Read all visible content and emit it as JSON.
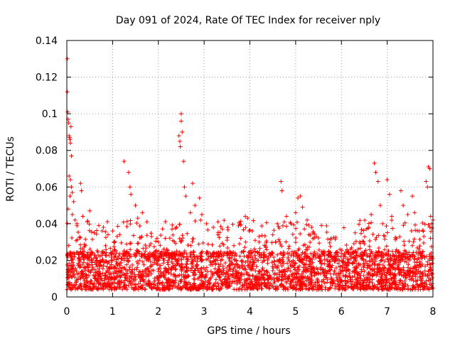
{
  "chart_data": {
    "type": "scatter",
    "title": "Day 091 of 2024, Rate Of TEC Index for receiver nply",
    "xlabel": "GPS time / hours",
    "ylabel": "ROTI / TECUs",
    "xlim": [
      0,
      8
    ],
    "ylim": [
      0,
      0.14
    ],
    "x_ticks": [
      0,
      1,
      2,
      3,
      4,
      5,
      6,
      7,
      8
    ],
    "x_tick_labels": [
      "0",
      "1",
      "2",
      "3",
      "4",
      "5",
      "6",
      "7",
      "8"
    ],
    "y_ticks": [
      0,
      0.02,
      0.04,
      0.06,
      0.08,
      0.1,
      0.12,
      0.14
    ],
    "y_tick_labels": [
      "0",
      "0.02",
      "0.04",
      "0.06",
      "0.08",
      "0.1",
      "0.12",
      "0.14"
    ],
    "grid": true,
    "marker": "+",
    "series": [
      {
        "name": "ROTI",
        "color": "#ff0000",
        "points": [
          [
            0.01,
            0.13
          ],
          [
            0.01,
            0.112
          ],
          [
            0.02,
            0.101
          ],
          [
            0.03,
            0.097
          ],
          [
            0.04,
            0.095
          ],
          [
            0.05,
            0.088
          ],
          [
            0.06,
            0.087
          ],
          [
            0.07,
            0.086
          ],
          [
            0.08,
            0.084
          ],
          [
            0.09,
            0.093
          ],
          [
            0.1,
            0.077
          ],
          [
            0.05,
            0.066
          ],
          [
            0.08,
            0.064
          ],
          [
            0.1,
            0.06
          ],
          [
            0.12,
            0.057
          ],
          [
            0.07,
            0.055
          ],
          [
            0.15,
            0.052
          ],
          [
            0.03,
            0.048
          ],
          [
            0.12,
            0.045
          ],
          [
            0.18,
            0.042
          ],
          [
            0.22,
            0.04
          ],
          [
            0.3,
            0.062
          ],
          [
            0.32,
            0.058
          ],
          [
            0.35,
            0.044
          ],
          [
            0.45,
            0.041
          ],
          [
            0.5,
            0.047
          ],
          [
            0.6,
            0.035
          ],
          [
            0.7,
            0.039
          ],
          [
            0.8,
            0.038
          ],
          [
            0.9,
            0.034
          ],
          [
            1.0,
            0.036
          ],
          [
            1.1,
            0.033
          ],
          [
            1.25,
            0.074
          ],
          [
            1.35,
            0.068
          ],
          [
            1.38,
            0.06
          ],
          [
            1.4,
            0.056
          ],
          [
            1.5,
            0.05
          ],
          [
            1.55,
            0.043
          ],
          [
            1.65,
            0.046
          ],
          [
            1.75,
            0.041
          ],
          [
            1.85,
            0.033
          ],
          [
            2.0,
            0.03
          ],
          [
            2.15,
            0.032
          ],
          [
            2.3,
            0.037
          ],
          [
            2.4,
            0.038
          ],
          [
            2.45,
            0.088
          ],
          [
            2.47,
            0.085
          ],
          [
            2.48,
            0.082
          ],
          [
            2.5,
            0.1
          ],
          [
            2.5,
            0.096
          ],
          [
            2.52,
            0.09
          ],
          [
            2.55,
            0.074
          ],
          [
            2.57,
            0.06
          ],
          [
            2.6,
            0.055
          ],
          [
            2.7,
            0.046
          ],
          [
            2.75,
            0.062
          ],
          [
            2.8,
            0.05
          ],
          [
            2.9,
            0.054
          ],
          [
            2.95,
            0.045
          ],
          [
            3.05,
            0.04
          ],
          [
            3.2,
            0.038
          ],
          [
            3.3,
            0.034
          ],
          [
            3.4,
            0.037
          ],
          [
            3.5,
            0.031
          ],
          [
            3.65,
            0.028
          ],
          [
            3.8,
            0.032
          ],
          [
            3.9,
            0.044
          ],
          [
            3.95,
            0.043
          ],
          [
            4.05,
            0.036
          ],
          [
            4.2,
            0.03
          ],
          [
            4.35,
            0.027
          ],
          [
            4.5,
            0.034
          ],
          [
            4.6,
            0.04
          ],
          [
            4.68,
            0.063
          ],
          [
            4.7,
            0.058
          ],
          [
            4.8,
            0.044
          ],
          [
            4.9,
            0.04
          ],
          [
            5.0,
            0.046
          ],
          [
            5.05,
            0.054
          ],
          [
            5.1,
            0.055
          ],
          [
            5.15,
            0.049
          ],
          [
            5.25,
            0.042
          ],
          [
            5.35,
            0.038
          ],
          [
            5.45,
            0.033
          ],
          [
            5.6,
            0.024
          ],
          [
            5.75,
            0.022
          ],
          [
            5.9,
            0.023
          ],
          [
            6.05,
            0.021
          ],
          [
            6.2,
            0.026
          ],
          [
            6.3,
            0.035
          ],
          [
            6.4,
            0.03
          ],
          [
            6.5,
            0.029
          ],
          [
            6.6,
            0.038
          ],
          [
            6.65,
            0.045
          ],
          [
            6.72,
            0.073
          ],
          [
            6.75,
            0.068
          ],
          [
            6.8,
            0.063
          ],
          [
            6.85,
            0.05
          ],
          [
            6.9,
            0.04
          ],
          [
            7.0,
            0.064
          ],
          [
            7.05,
            0.056
          ],
          [
            7.1,
            0.044
          ],
          [
            7.2,
            0.032
          ],
          [
            7.3,
            0.058
          ],
          [
            7.35,
            0.05
          ],
          [
            7.45,
            0.045
          ],
          [
            7.55,
            0.055
          ],
          [
            7.6,
            0.046
          ],
          [
            7.7,
            0.036
          ],
          [
            7.8,
            0.033
          ],
          [
            7.85,
            0.063
          ],
          [
            7.88,
            0.06
          ],
          [
            7.9,
            0.071
          ],
          [
            7.93,
            0.07
          ],
          [
            7.95,
            0.044
          ],
          [
            7.97,
            0.04
          ],
          [
            8.0,
            0.042
          ]
        ],
        "background_band": {
          "x_range": [
            0,
            8
          ],
          "typical_range": [
            0.004,
            0.025
          ]
        }
      }
    ]
  }
}
